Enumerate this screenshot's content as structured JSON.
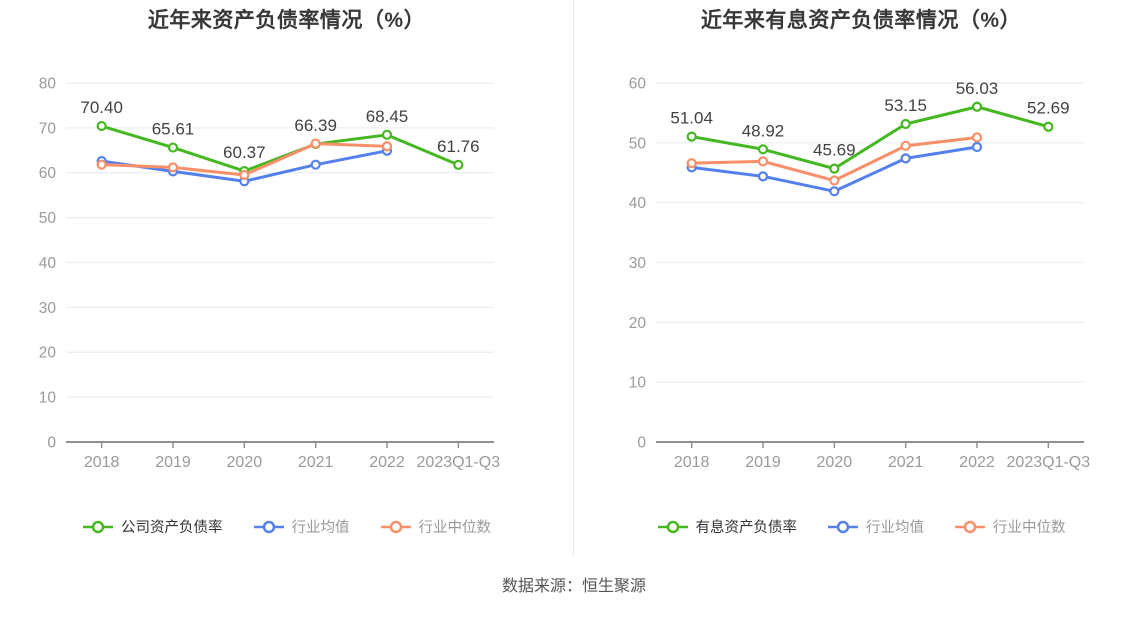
{
  "page": {
    "source_text": "数据来源：恒生聚源"
  },
  "colors": {
    "company_green": "#45b821",
    "industry_mean_blue": "#5480ee",
    "industry_median_orange": "#f88f68",
    "axis_gray": "#8f8f8f",
    "tick_label_gray": "#9a9a9a",
    "grid_line": "#eaeef5",
    "data_label": "#424242"
  },
  "chart_data": [
    {
      "type": "line",
      "title": "近年来资产负债率情况（%）",
      "categories": [
        "2018",
        "2019",
        "2020",
        "2021",
        "2022",
        "2023Q1-Q3"
      ],
      "ylim": [
        0,
        80
      ],
      "ytick_step": 10,
      "ytick_labels": [
        "0",
        "10",
        "20",
        "30",
        "40",
        "50",
        "60",
        "70",
        "80"
      ],
      "grid": true,
      "legend_position": "bottom",
      "series": [
        {
          "name": "公司资产负债率",
          "color": "#45b821",
          "values": [
            70.4,
            65.61,
            60.37,
            66.39,
            68.45,
            61.76
          ],
          "point_labels": [
            "70.40",
            "65.61",
            "60.37",
            "66.39",
            "68.45",
            "61.76"
          ]
        },
        {
          "name": "行业均值",
          "color": "#5480ee",
          "values": [
            62.6,
            60.3,
            58.1,
            61.8,
            64.9,
            null
          ]
        },
        {
          "name": "行业中位数",
          "color": "#f88f68",
          "values": [
            61.8,
            61.2,
            59.5,
            66.5,
            65.9,
            null
          ]
        }
      ]
    },
    {
      "type": "line",
      "title": "近年来有息资产负债率情况（%）",
      "categories": [
        "2018",
        "2019",
        "2020",
        "2021",
        "2022",
        "2023Q1-Q3"
      ],
      "ylim": [
        0,
        60
      ],
      "ytick_step": 10,
      "ytick_labels": [
        "0",
        "10",
        "20",
        "30",
        "40",
        "50",
        "60"
      ],
      "grid": true,
      "legend_position": "bottom",
      "series": [
        {
          "name": "有息资产负债率",
          "color": "#45b821",
          "values": [
            51.04,
            48.92,
            45.69,
            53.15,
            56.03,
            52.69
          ],
          "point_labels": [
            "51.04",
            "48.92",
            "45.69",
            "53.15",
            "56.03",
            "52.69"
          ]
        },
        {
          "name": "行业均值",
          "color": "#5480ee",
          "values": [
            45.9,
            44.4,
            41.9,
            47.4,
            49.3,
            null
          ]
        },
        {
          "name": "行业中位数",
          "color": "#f88f68",
          "values": [
            46.6,
            46.9,
            43.7,
            49.5,
            50.9,
            null
          ]
        }
      ]
    }
  ]
}
